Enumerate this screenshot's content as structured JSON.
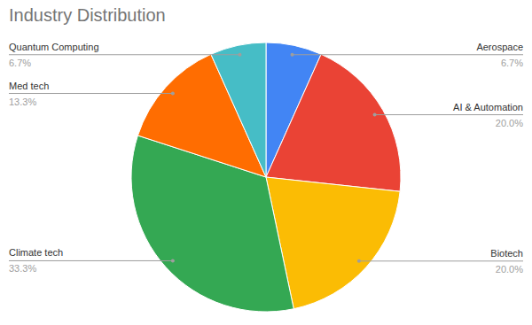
{
  "chart_data": {
    "type": "pie",
    "title": "Industry Distribution",
    "categories": [
      "Aerospace",
      "AI & Automation",
      "Biotech",
      "Climate tech",
      "Med tech",
      "Quantum Computing"
    ],
    "values": [
      6.7,
      20.0,
      20.0,
      33.3,
      13.3,
      6.7
    ],
    "value_labels": [
      "6.7%",
      "20.0%",
      "20.0%",
      "33.3%",
      "13.3%",
      "6.7%"
    ],
    "colors": [
      "#4285f4",
      "#ea4335",
      "#fbbc04",
      "#34a853",
      "#ff6d01",
      "#46bdc6"
    ],
    "data_labels": true
  }
}
